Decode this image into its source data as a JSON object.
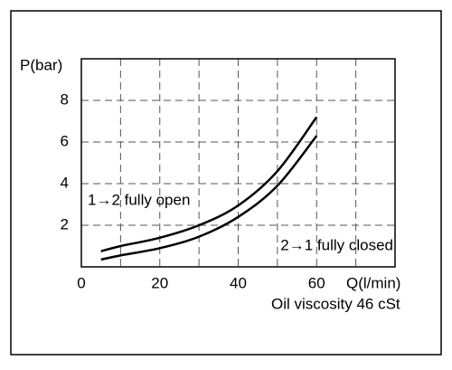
{
  "chart_data": {
    "type": "line",
    "y_label": "P(bar)",
    "x_label": "Q(l/min)",
    "note": "Oil viscosity 46 cSt",
    "x": [
      5,
      10,
      20,
      30,
      40,
      50,
      60
    ],
    "series": [
      {
        "name": "1→2 fully open",
        "color": "#000000",
        "values": [
          0.75,
          1.0,
          1.4,
          2.0,
          2.95,
          4.6,
          7.2
        ]
      },
      {
        "name": "2→1 fully closed",
        "color": "#000000",
        "values": [
          0.35,
          0.55,
          0.9,
          1.45,
          2.4,
          3.9,
          6.3
        ]
      }
    ],
    "xlim": [
      0,
      80
    ],
    "xticks": [
      0,
      20,
      40,
      60
    ],
    "xminor": [
      10,
      30,
      50,
      70
    ],
    "ylim": [
      0,
      10
    ],
    "yticks": [
      2,
      4,
      6,
      8
    ],
    "grid": true
  }
}
